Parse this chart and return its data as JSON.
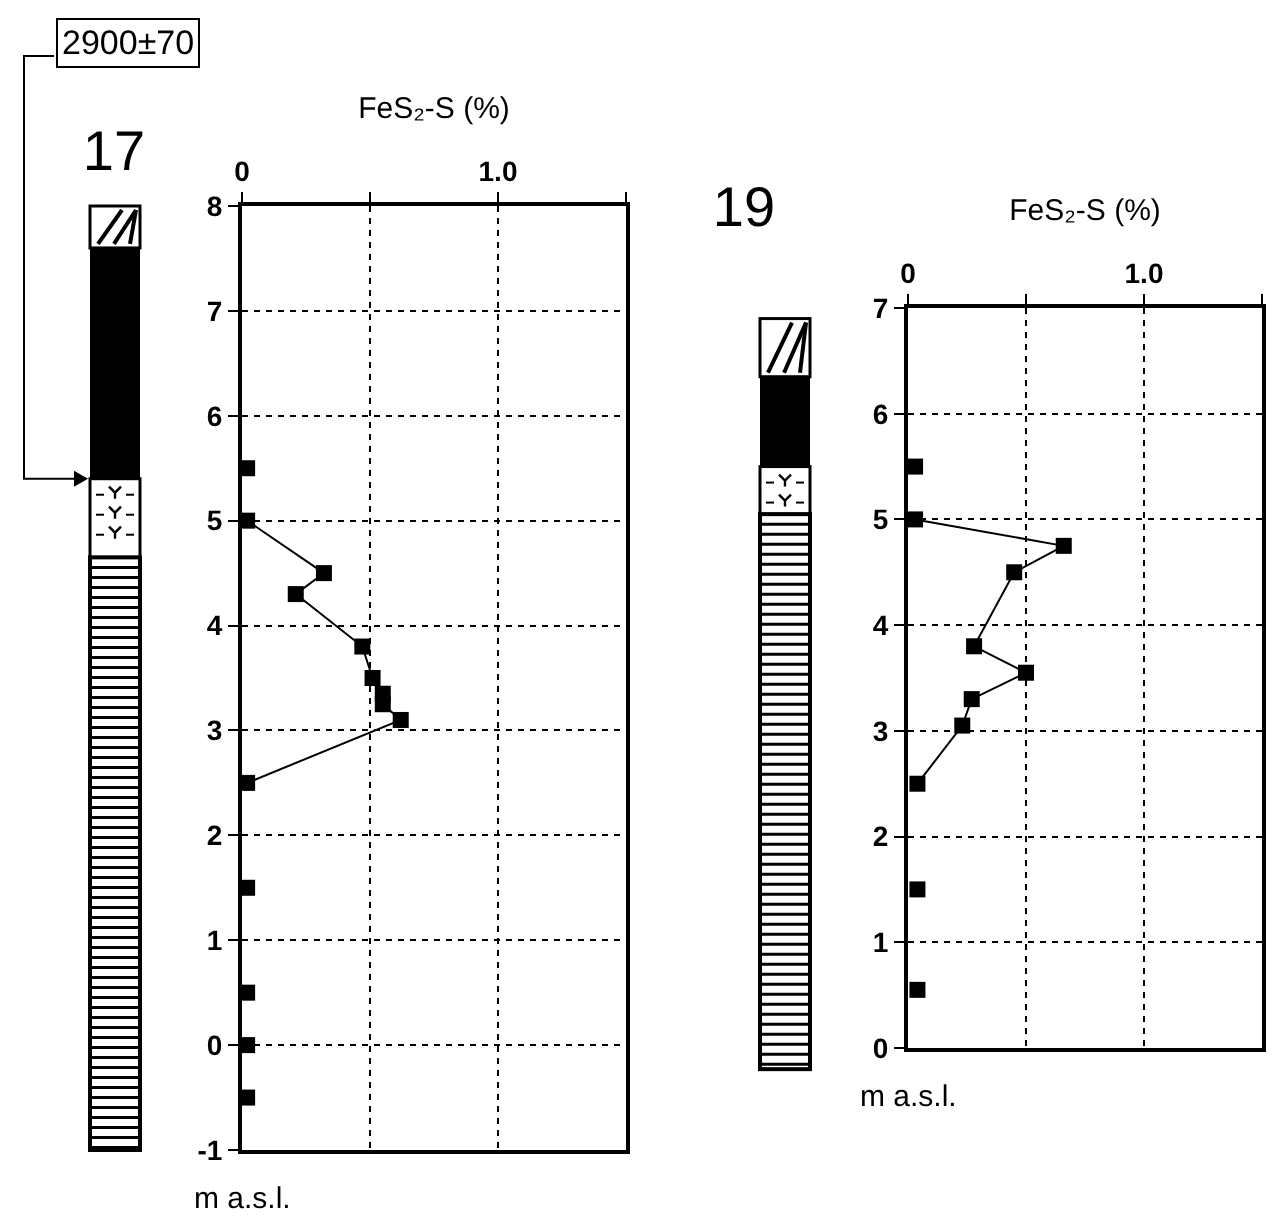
{
  "chart_data": [
    {
      "type": "line",
      "title": "17",
      "xlabel": "FeS₂-S (%)",
      "ylabel": "m a.s.l.",
      "annotations": [
        "2900±70"
      ],
      "xlim": [
        0,
        1.5
      ],
      "xticks": [
        0,
        {
          "value": 0.5,
          "label": null
        },
        {
          "value": 1.0,
          "label": "1.0"
        },
        {
          "value": 1.5,
          "label": null
        }
      ],
      "ylim": [
        -1,
        8
      ],
      "yticks": [
        -1,
        0,
        1,
        2,
        3,
        4,
        5,
        6,
        7,
        8
      ],
      "grid": true,
      "marker": "square",
      "series": [
        {
          "type": "line",
          "color": "#000000",
          "x": [
            0.02,
            0.32,
            0.21,
            0.47,
            0.51,
            0.55,
            0.55,
            0.62,
            0.02
          ],
          "values": [
            5.0,
            4.5,
            4.3,
            3.8,
            3.5,
            3.35,
            3.25,
            3.1,
            2.5
          ]
        },
        {
          "type": "scatter",
          "color": "#000000",
          "x": [
            0.02,
            0.02,
            0.02,
            0.02,
            0.02
          ],
          "values": [
            5.5,
            1.5,
            0.5,
            0.0,
            -0.5
          ]
        }
      ]
    },
    {
      "type": "line",
      "title": "19",
      "xlabel": "FeS₂-S (%)",
      "ylabel": "m a.s.l.",
      "xlim": [
        0,
        1.5
      ],
      "xticks": [
        0,
        {
          "value": 0.5,
          "label": null
        },
        {
          "value": 1.0,
          "label": "1.0"
        },
        {
          "value": 1.5,
          "label": null
        }
      ],
      "ylim": [
        0,
        7
      ],
      "yticks": [
        0,
        1,
        2,
        3,
        4,
        5,
        6,
        7
      ],
      "grid": true,
      "marker": "square",
      "series": [
        {
          "type": "line",
          "color": "#000000",
          "x": [
            0.03,
            0.66,
            0.45,
            0.28,
            0.5,
            0.27,
            0.23,
            0.04
          ],
          "values": [
            5.0,
            4.75,
            4.5,
            3.8,
            3.55,
            3.3,
            3.05,
            2.5
          ]
        },
        {
          "type": "scatter",
          "color": "#000000",
          "x": [
            0.03,
            0.04,
            0.04
          ],
          "values": [
            5.5,
            1.5,
            0.55
          ]
        }
      ]
    }
  ]
}
